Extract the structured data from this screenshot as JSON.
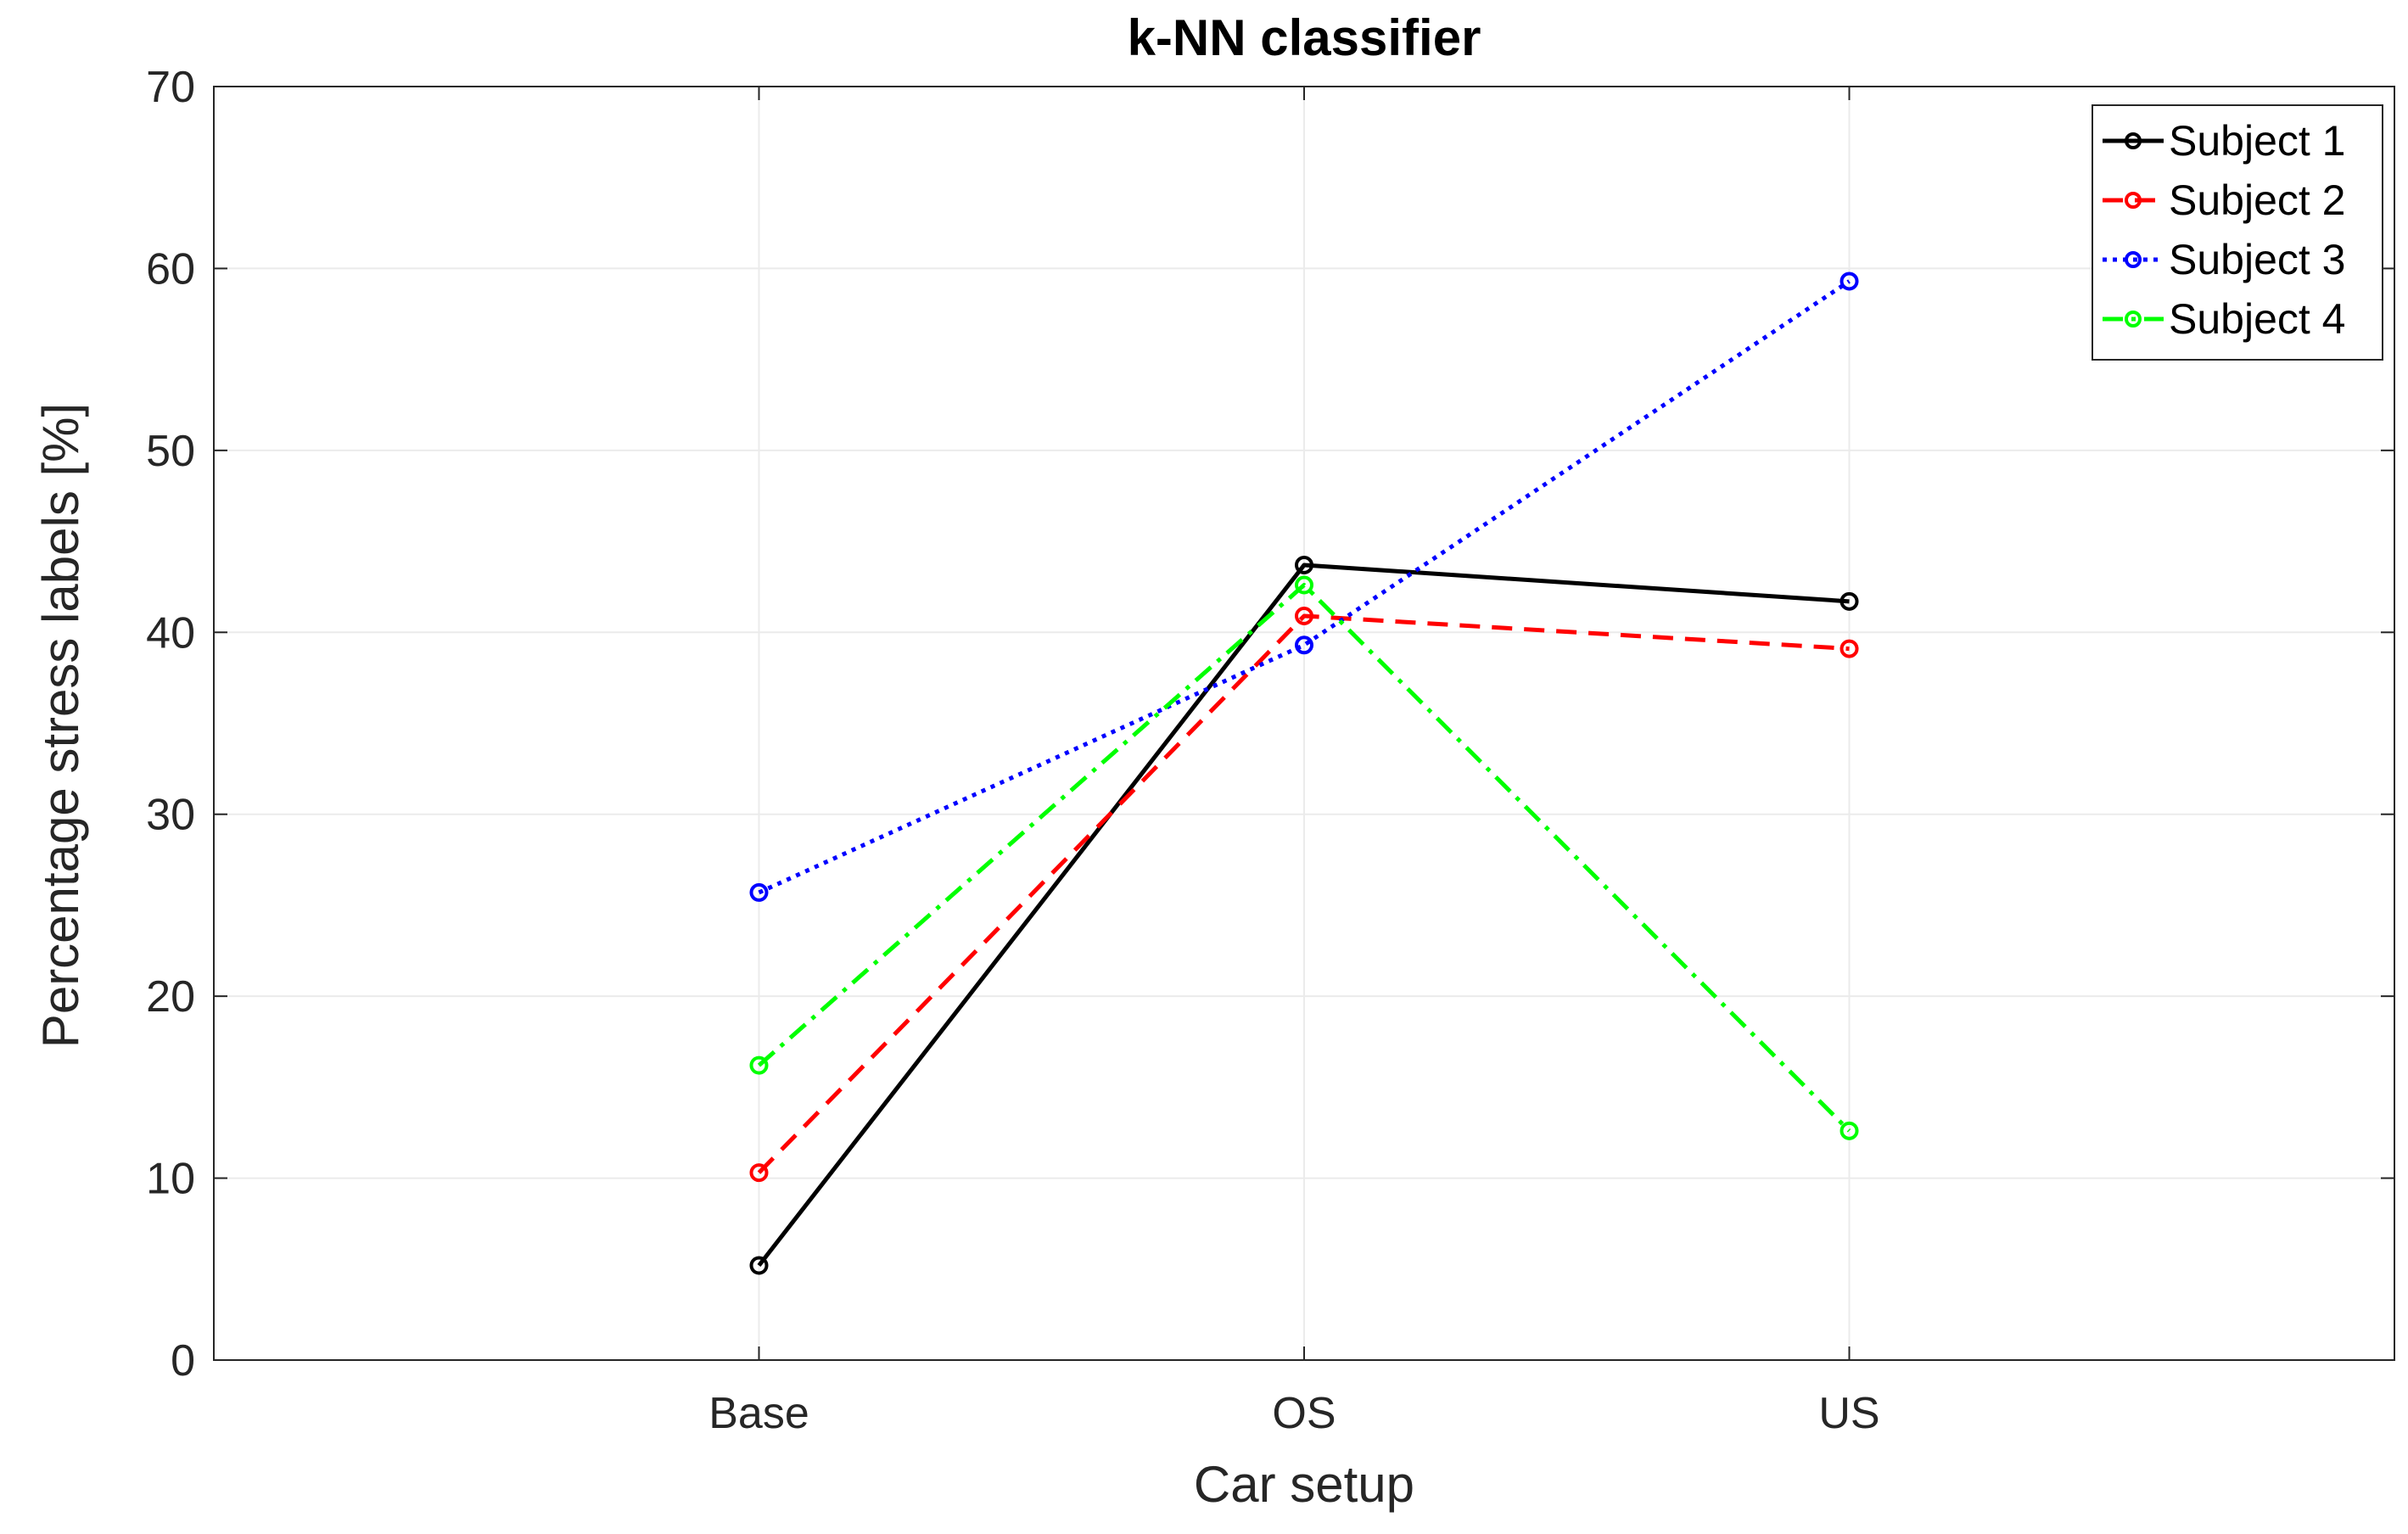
{
  "chart_data": {
    "type": "line",
    "title": "k-NN classifier",
    "xlabel": "Car setup",
    "ylabel": "Percentage stress labels [%]",
    "categories": [
      "Base",
      "OS",
      "US"
    ],
    "ylim": [
      0,
      70
    ],
    "yticks": [
      0,
      10,
      20,
      30,
      40,
      50,
      60,
      70
    ],
    "grid": true,
    "legend_position": "top-right",
    "series": [
      {
        "name": "Subject 1",
        "values": [
          5.2,
          43.7,
          41.7
        ],
        "color": "#000000",
        "dash": "solid"
      },
      {
        "name": "Subject 2",
        "values": [
          10.3,
          40.9,
          39.1
        ],
        "color": "#ff0000",
        "dash": "dashed"
      },
      {
        "name": "Subject 3",
        "values": [
          25.7,
          39.3,
          59.3
        ],
        "color": "#0000ff",
        "dash": "dotted"
      },
      {
        "name": "Subject 4",
        "values": [
          16.2,
          42.6,
          12.6
        ],
        "color": "#00ff00",
        "dash": "dashdot"
      }
    ]
  }
}
